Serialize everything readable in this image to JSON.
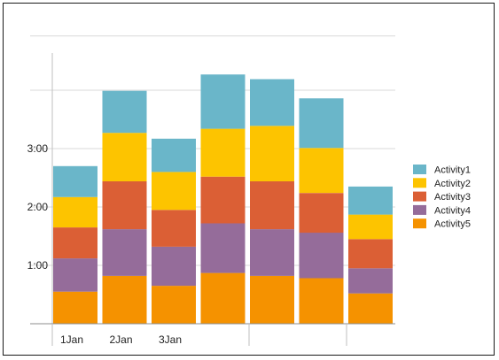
{
  "chart_data": {
    "type": "bar",
    "stacked": true,
    "title": "",
    "xlabel": "",
    "ylabel": "",
    "categories": [
      "1Jan",
      "2Jan",
      "3Jan",
      "",
      "",
      "",
      ""
    ],
    "y_unit": "hours",
    "ylim": [
      0,
      5
    ],
    "y_ticks": [
      {
        "value": 1,
        "label": "1:00"
      },
      {
        "value": 2,
        "label": "2:00"
      },
      {
        "value": 3,
        "label": "3:00"
      }
    ],
    "grid": true,
    "legend_position": "right",
    "series": [
      {
        "name": "Activity5",
        "color": "#f59200",
        "values": [
          0.55,
          0.82,
          0.65,
          0.87,
          0.82,
          0.78,
          0.52
        ]
      },
      {
        "name": "Activity4",
        "color": "#956c9a",
        "values": [
          0.57,
          0.8,
          0.67,
          0.85,
          0.8,
          0.78,
          0.43
        ]
      },
      {
        "name": "Activity3",
        "color": "#db5f35",
        "values": [
          0.53,
          0.82,
          0.63,
          0.8,
          0.82,
          0.68,
          0.5
        ]
      },
      {
        "name": "Activity2",
        "color": "#fdc400",
        "values": [
          0.52,
          0.83,
          0.65,
          0.82,
          0.95,
          0.77,
          0.42
        ]
      },
      {
        "name": "Activity1",
        "color": "#6ab6c9",
        "values": [
          0.53,
          0.72,
          0.57,
          0.93,
          0.8,
          0.85,
          0.48
        ]
      }
    ]
  },
  "legend_order": [
    "Activity1",
    "Activity2",
    "Activity3",
    "Activity4",
    "Activity5"
  ]
}
